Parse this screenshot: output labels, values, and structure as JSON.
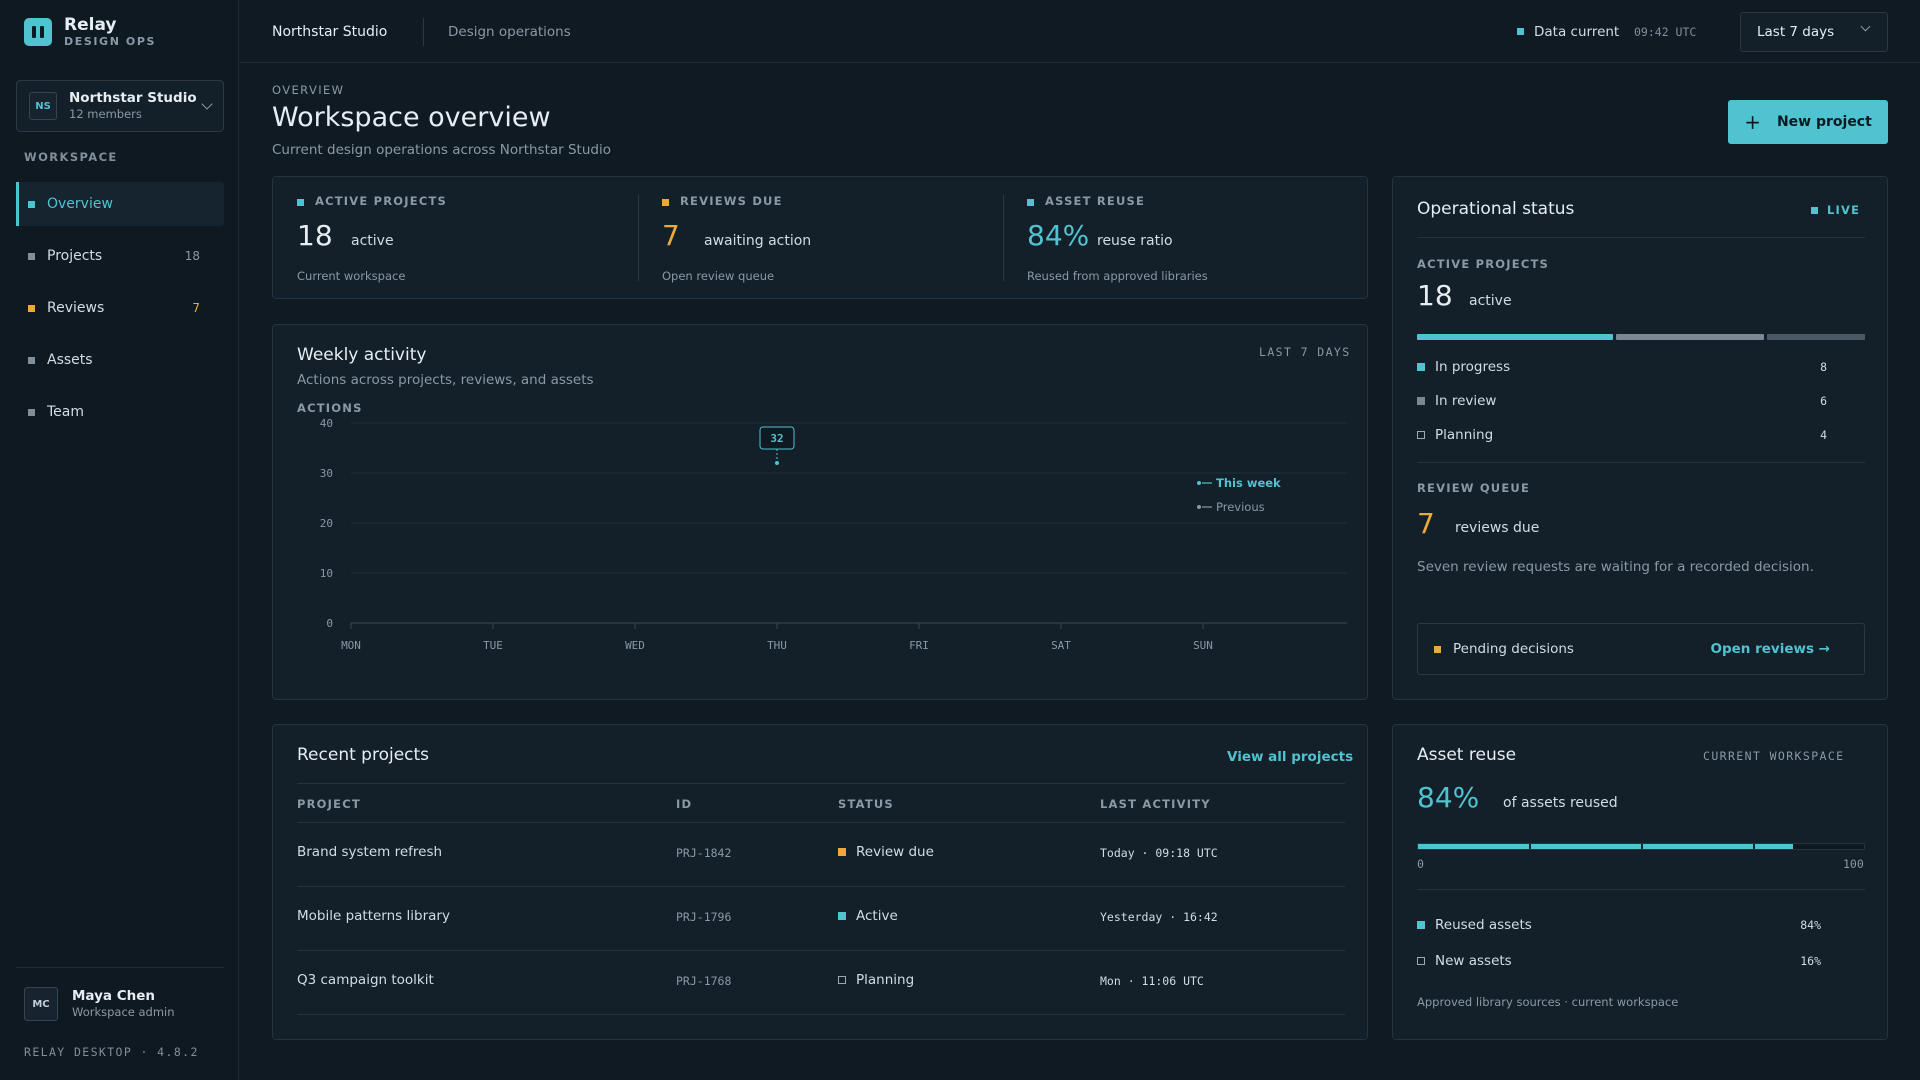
{
  "brand": {
    "name": "Relay",
    "subtitle": "DESIGN OPS"
  },
  "workspace_switcher": {
    "initials": "NS",
    "name": "Northstar Studio",
    "members": "12 members"
  },
  "sidebar": {
    "section_label": "WORKSPACE",
    "items": [
      {
        "label": "Overview",
        "count": "",
        "active": true
      },
      {
        "label": "Projects",
        "count": "18"
      },
      {
        "label": "Reviews",
        "count": "7",
        "count_color": "#e9a93b"
      },
      {
        "label": "Assets",
        "count": ""
      },
      {
        "label": "Team",
        "count": ""
      }
    ],
    "user": {
      "initials": "MC",
      "name": "Maya Chen",
      "role": "Workspace admin"
    },
    "version": "RELAY DESKTOP · 4.8.2"
  },
  "topbar": {
    "breadcrumb_primary": "Northstar Studio",
    "breadcrumb_secondary": "Design operations",
    "data_status": "Data current",
    "data_time": "09:42 UTC",
    "range_select": "Last 7 days"
  },
  "header": {
    "eyebrow": "OVERVIEW",
    "title": "Workspace overview",
    "subtitle": "Current design operations across Northstar Studio",
    "new_project_label": "New project"
  },
  "kpis": [
    {
      "label": "ACTIVE PROJECTS",
      "value": "18",
      "unit": "active",
      "footnote": "Current workspace",
      "color": "#4fc3d0",
      "value_color": "#e6edf3"
    },
    {
      "label": "REVIEWS DUE",
      "value": "7",
      "unit": "awaiting action",
      "footnote": "Open review queue",
      "color": "#e9a93b",
      "value_color": "#e9a93b"
    },
    {
      "label": "ASSET REUSE",
      "value": "84%",
      "unit": "reuse ratio",
      "footnote": "Reused from approved libraries",
      "color": "#4fc3d0",
      "value_color": "#4fc3d0"
    }
  ],
  "activity": {
    "title": "Weekly activity",
    "subtitle": "Actions across projects, reviews, and assets",
    "range_tag": "LAST 7 DAYS",
    "y_label": "ACTIONS",
    "legend": {
      "current": "This week",
      "previous": "Previous"
    }
  },
  "chart_data": {
    "type": "line",
    "categories": [
      "MON",
      "TUE",
      "WED",
      "THU",
      "FRI",
      "SAT",
      "SUN"
    ],
    "ylim": [
      0,
      40
    ],
    "yticks": [
      0,
      10,
      20,
      30,
      40
    ],
    "ylabel": "ACTIONS",
    "grid": true,
    "legend_position": "right",
    "series": [
      {
        "name": "This week",
        "color": "#4fc3d0",
        "points": [
          {
            "x": "THU",
            "y": 32
          }
        ]
      },
      {
        "name": "Previous",
        "color": "#8a99a6",
        "points": []
      }
    ],
    "annotations": [
      {
        "x": "THU",
        "y": 32,
        "text": "32"
      }
    ]
  },
  "ops": {
    "title": "Operational status",
    "live": "LIVE",
    "active_label": "ACTIVE PROJECTS",
    "active_value": "18",
    "active_unit": "active",
    "breakdown": [
      {
        "label": "In progress",
        "value": 8,
        "color": "#4fc3d0",
        "hollow": false
      },
      {
        "label": "In review",
        "value": 6,
        "color": "#7c8894",
        "hollow": false
      },
      {
        "label": "Planning",
        "value": 4,
        "color": "#4a5865",
        "hollow": true
      }
    ],
    "queue_label": "REVIEW QUEUE",
    "queue_value": "7",
    "queue_unit": "reviews due",
    "queue_note": "Seven review requests are waiting for a recorded decision.",
    "pending_label": "Pending decisions",
    "pending_link": "Open reviews →"
  },
  "projects": {
    "title": "Recent projects",
    "view_all": "View all projects",
    "columns": [
      "PROJECT",
      "ID",
      "STATUS",
      "LAST ACTIVITY"
    ],
    "rows": [
      {
        "name": "Brand system refresh",
        "id": "PRJ-1842",
        "status": "Review due",
        "status_color": "#e9a93b",
        "hollow": false,
        "activity": "Today · 09:18 UTC"
      },
      {
        "name": "Mobile patterns library",
        "id": "PRJ-1796",
        "status": "Active",
        "status_color": "#4fc3d0",
        "hollow": false,
        "activity": "Yesterday · 16:42"
      },
      {
        "name": "Q3 campaign toolkit",
        "id": "PRJ-1768",
        "status": "Planning",
        "status_color": "#9aa8b4",
        "hollow": true,
        "activity": "Mon · 11:06 UTC"
      }
    ]
  },
  "reuse": {
    "title": "Asset reuse",
    "tag": "CURRENT WORKSPACE",
    "value": "84%",
    "unit": "of assets reused",
    "percent": 84,
    "scale_min": "0",
    "scale_max": "100",
    "legend": [
      {
        "label": "Reused assets",
        "value": "84%",
        "color": "#4fc3d0",
        "hollow": false
      },
      {
        "label": "New assets",
        "value": "16%",
        "color": "#9aa8b4",
        "hollow": true
      }
    ],
    "footnote": "Approved library sources · current workspace"
  }
}
